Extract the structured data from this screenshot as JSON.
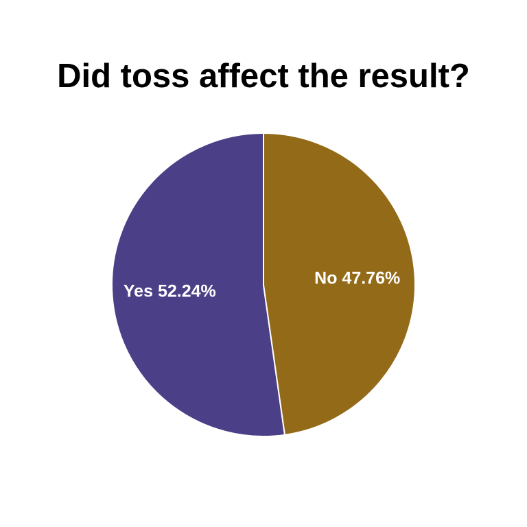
{
  "chart_data": {
    "type": "pie",
    "title": "Did toss affect the result?",
    "categories": [
      "Yes",
      "No"
    ],
    "values": [
      52.24,
      47.76
    ],
    "labels": [
      "Yes 52.24%",
      "No 47.76%"
    ],
    "colors": [
      "#4b4088",
      "#936a18"
    ],
    "edge_color": "#ffffff",
    "start": "12 o'clock",
    "direction": "counterclockwise",
    "legend": "none"
  }
}
